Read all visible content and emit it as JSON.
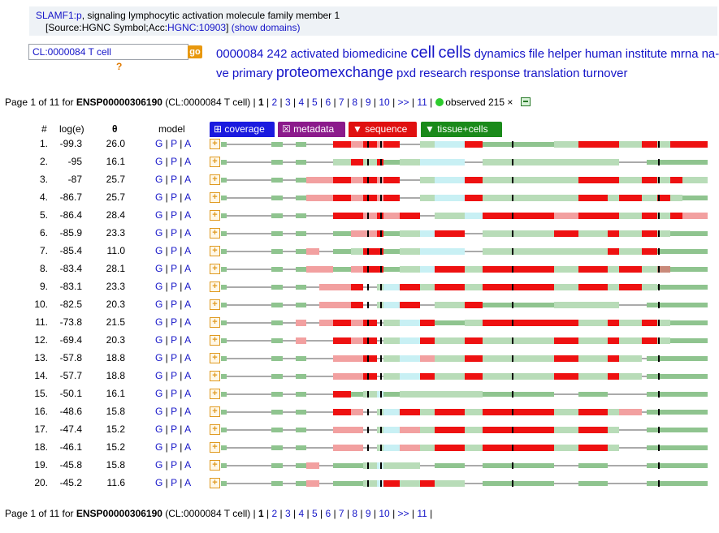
{
  "protein": {
    "gene_link": "SLAMF1:p",
    "description": ", signaling lymphocytic activation molecule family member 1",
    "source_prefix": "[Source:HGNC Symbol;Acc:",
    "hgnc_link": "HGNC:10903",
    "source_suffix": "]",
    "show_domains": "(show domains)"
  },
  "search": {
    "value": "CL:0000084 T cell",
    "go_label": "go",
    "help": "?"
  },
  "tag_cloud": [
    {
      "text": "0000084",
      "size": 15
    },
    {
      "text": "242",
      "size": 15
    },
    {
      "text": "activated",
      "size": 15
    },
    {
      "text": "biomedicine",
      "size": 15
    },
    {
      "text": "cell",
      "size": 20
    },
    {
      "text": "cells",
      "size": 20
    },
    {
      "text": "dynamics",
      "size": 15
    },
    {
      "text": "file",
      "size": 15
    },
    {
      "text": "helper",
      "size": 15
    },
    {
      "text": "human",
      "size": 15
    },
    {
      "text": "institute",
      "size": 15
    },
    {
      "text": "mrna",
      "size": 15
    },
    {
      "text": "na-ve",
      "size": 15
    },
    {
      "text": "primary",
      "size": 15
    },
    {
      "text": "proteomexchange",
      "size": 18
    },
    {
      "text": "pxd",
      "size": 15
    },
    {
      "text": "research",
      "size": 15
    },
    {
      "text": "response",
      "size": 15
    },
    {
      "text": "translation",
      "size": 15
    },
    {
      "text": "turnover",
      "size": 15
    }
  ],
  "pager": {
    "prefix": "Page 1 of 11 for ",
    "protein_id": "ENSP00000306190",
    "context": " (CL:0000084 T cell) | ",
    "current": "1",
    "pages": [
      "2",
      "3",
      "4",
      "5",
      "6",
      "7",
      "8",
      "9",
      "10"
    ],
    "next": ">>",
    "last": "11",
    "observed": "observed 215 ×"
  },
  "columns": {
    "rank": "#",
    "log": "log(e)",
    "theta": "θ",
    "model": "model"
  },
  "tabs": [
    {
      "label": "⊞ coverage",
      "color": "#1a1adf"
    },
    {
      "label": "☒ metadata",
      "color": "#8b1a8b"
    },
    {
      "label": "▼ sequence",
      "color": "#e01010"
    },
    {
      "label": "▼ tissue+cells",
      "color": "#1a8a1a"
    }
  ],
  "model_links": {
    "g": "G",
    "p": "P",
    "a": "A",
    "sep": " | "
  },
  "colors": {
    "strong_red": "#ee1111",
    "light_red": "#f2a0a0",
    "cyan": "#c8f0f4",
    "green": "#8fc48f",
    "light_green": "#b8dcb8",
    "tick": "#000000"
  },
  "rows": [
    {
      "rank": "1.",
      "log": "-99.3",
      "theta": "26.0",
      "seg": "GGGGGRLRLRGgCRGgRRgRgRR"
    },
    {
      "rank": "2.",
      "log": "-95",
      "theta": "16.1",
      "seg": "GGGGGgRgRGgCcGgggg"
    },
    {
      "rank": "3.",
      "log": "-87",
      "theta": "25.7",
      "seg": "GGGLLRLRLRGgCRggRRgRgRgGG"
    },
    {
      "rank": "4.",
      "log": "-86.7",
      "theta": "25.7",
      "seg": "GGGLLRLRLRGgCRggRgRgRgG"
    },
    {
      "rank": "5.",
      "log": "-86.4",
      "theta": "28.4",
      "seg": "GGGGGRRLRLRGgCRLRRgRgRLG"
    },
    {
      "rank": "6.",
      "log": "-85.9",
      "theta": "23.3",
      "seg": "GGGGGGLLRGgCRGgRgRgRgG"
    },
    {
      "rank": "7.",
      "log": "-85.4",
      "theta": "11.0",
      "seg": "GGGLGGgRRGgCcGgggRgRGG"
    },
    {
      "rank": "8.",
      "log": "-83.4",
      "theta": "28.1",
      "seg": "GGGLLGLRRGgCRgRgRgRgBG"
    },
    {
      "rank": "9.",
      "log": "-83.1",
      "theta": "23.3",
      "seg": "GGGGLLRGgCRgRgRgRgRgG"
    },
    {
      "rank": "10.",
      "log": "-82.5",
      "theta": "20.3",
      "seg": "GGGGLLRGgCRGgRGgggG"
    },
    {
      "rank": "11.",
      "log": "-73.8",
      "theta": "21.5",
      "seg": "GGLGLRLRGgCRGgRRgRgRgG"
    },
    {
      "rank": "12.",
      "log": "-69.4",
      "theta": "20.3",
      "seg": "GGLGGRLRGgCRgRgRgRgRgG"
    },
    {
      "rank": "13.",
      "log": "-57.8",
      "theta": "18.8",
      "seg": "GGGGGLLRGgCLgRgRgRgG"
    },
    {
      "rank": "14.",
      "log": "-57.7",
      "theta": "18.8",
      "seg": "GGGGGLLRGgCRgRgRgRgG"
    },
    {
      "rank": "15.",
      "log": "-50.1",
      "theta": "16.1",
      "seg": "GGGGGRGgCGggggG"
    },
    {
      "rank": "16.",
      "log": "-48.6",
      "theta": "15.8",
      "seg": "GGGGGRLGgCRgRgRgRgLG"
    },
    {
      "rank": "17.",
      "log": "-47.4",
      "theta": "15.2",
      "seg": "GGGGGLLGgCLgRgRgRgG"
    },
    {
      "rank": "18.",
      "log": "-46.1",
      "theta": "15.2",
      "seg": "GGGGGLLGgCLgRgRgRgG"
    },
    {
      "rank": "19.",
      "log": "-45.8",
      "theta": "15.8",
      "seg": "GGGLGGGgCggG"
    },
    {
      "rank": "20.",
      "log": "-45.2",
      "theta": "11.6",
      "seg": "GGGLGGGgCRgRgG"
    }
  ]
}
